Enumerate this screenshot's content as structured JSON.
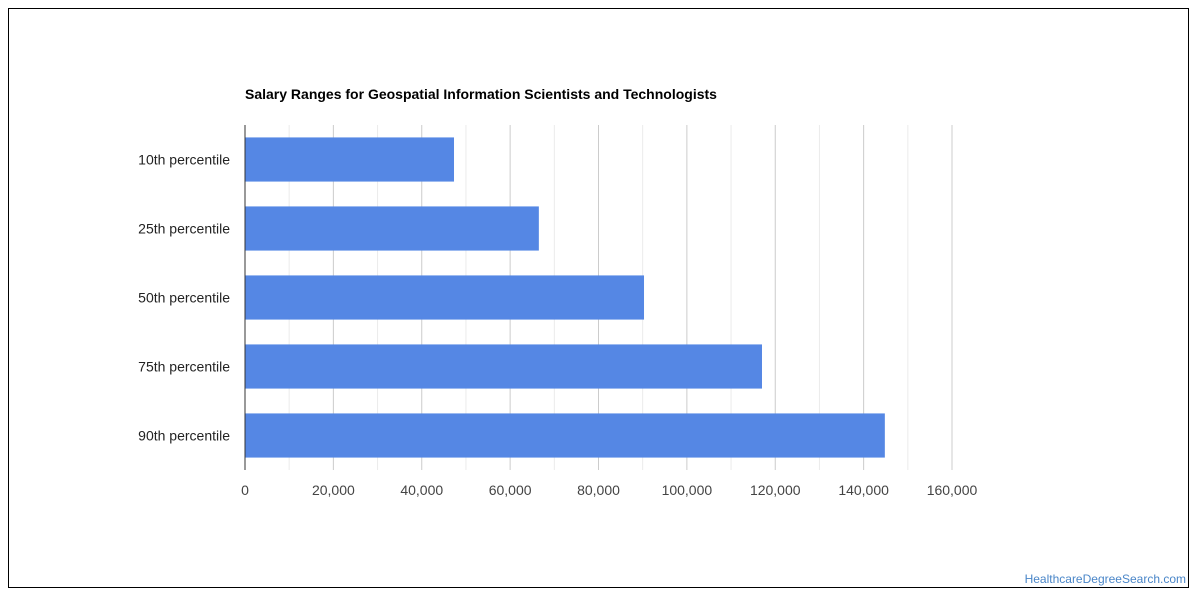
{
  "watermark": "HealthcareDegreeSearch.com",
  "chart_data": {
    "type": "bar",
    "orientation": "horizontal",
    "title": "Salary Ranges for Geospatial Information Scientists and Technologists",
    "categories": [
      "10th percentile",
      "25th percentile",
      "50th percentile",
      "75th percentile",
      "90th percentile"
    ],
    "values": [
      47300,
      66500,
      90300,
      117000,
      144800
    ],
    "xlim": [
      0,
      160000
    ],
    "xticks": [
      0,
      20000,
      40000,
      60000,
      80000,
      100000,
      120000,
      140000,
      160000
    ],
    "tick_labels": [
      "0",
      "20,000",
      "40,000",
      "60,000",
      "80,000",
      "100,000",
      "120,000",
      "140,000",
      "160,000"
    ],
    "xlabel": "",
    "ylabel": "",
    "grid": true,
    "legend": "none",
    "bar_color": "#5587e4"
  }
}
